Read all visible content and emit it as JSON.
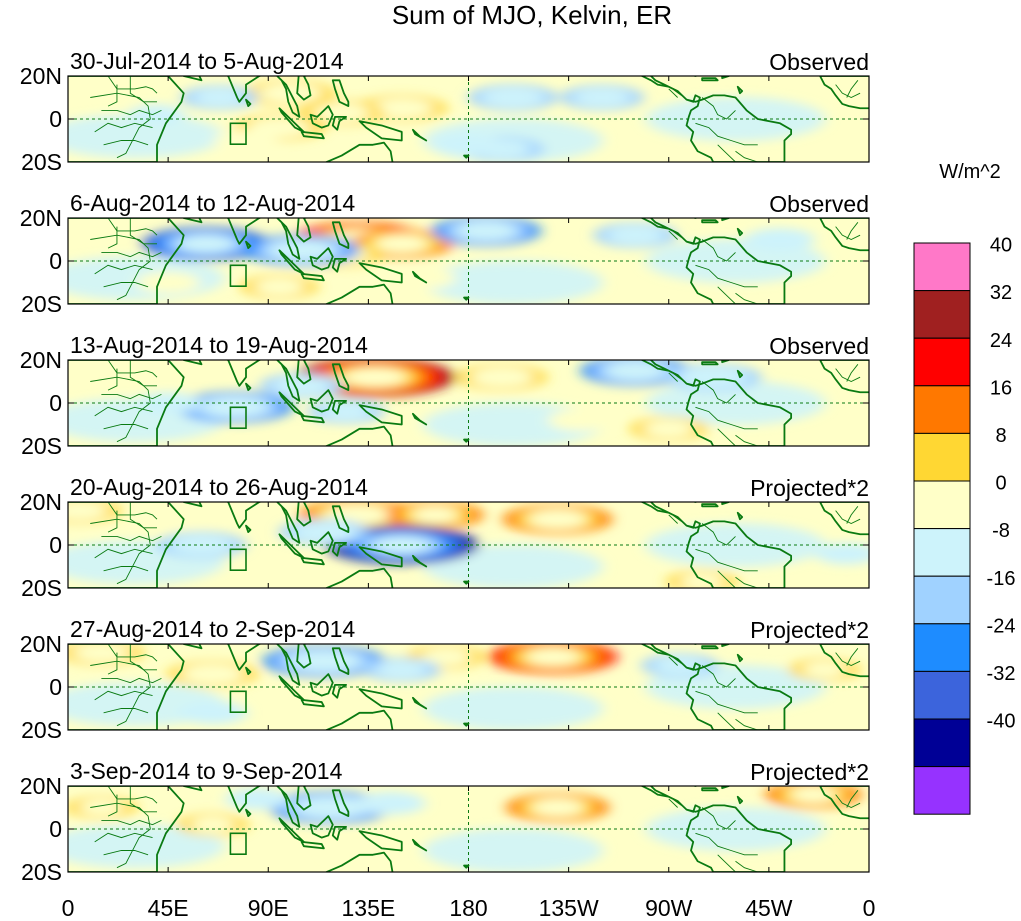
{
  "chart_data": {
    "type": "heatmap",
    "title": "Sum of MJO, Kelvin, ER",
    "units": "W/m^2",
    "x_tick_labels": [
      "0",
      "45E",
      "90E",
      "135E",
      "180",
      "135W",
      "90W",
      "45W",
      "0"
    ],
    "y_tick_labels": [
      "20N",
      "0",
      "20S"
    ],
    "xlim_deg_east": [
      0,
      360
    ],
    "ylim_deg": [
      -20,
      20
    ],
    "colorbar": {
      "levels": [
        40,
        32,
        24,
        16,
        8,
        0,
        -8,
        -16,
        -24,
        -32,
        -40
      ],
      "colors": [
        "#ff78c8",
        "#a02020",
        "#ff0000",
        "#ff7800",
        "#ffd733",
        "#ffffc8",
        "#cdf3fb",
        "#a0d2ff",
        "#1e8cff",
        "#3c64dc",
        "#000096",
        "#9632ff"
      ]
    },
    "panels": [
      {
        "label": "30-Jul-2014 to 5-Aug-2014",
        "status": "Observed",
        "anomalies": [
          {
            "lon": 100,
            "lat": 12,
            "value": 14
          },
          {
            "lon": 150,
            "lat": 5,
            "value": 14
          },
          {
            "lon": 123,
            "lat": 3,
            "value": 12
          },
          {
            "lon": 95,
            "lat": -4,
            "value": 14
          },
          {
            "lon": 80,
            "lat": -10,
            "value": 6
          },
          {
            "lon": 68,
            "lat": 10,
            "value": -10
          },
          {
            "lon": 200,
            "lat": 10,
            "value": -14
          },
          {
            "lon": 240,
            "lat": 10,
            "value": -12
          },
          {
            "lon": 195,
            "lat": -14,
            "value": -12
          },
          {
            "lon": 180,
            "lat": -12,
            "value": -8
          },
          {
            "lon": 40,
            "lat": 2,
            "value": -4
          }
        ]
      },
      {
        "label": "6-Aug-2014 to 12-Aug-2014",
        "status": "Observed",
        "anomalies": [
          {
            "lon": 131,
            "lat": 10,
            "value": 28
          },
          {
            "lon": 150,
            "lat": 8,
            "value": 18
          },
          {
            "lon": 122,
            "lat": 3,
            "value": 12
          },
          {
            "lon": 95,
            "lat": -12,
            "value": 10
          },
          {
            "lon": 45,
            "lat": -10,
            "value": 6
          },
          {
            "lon": 160,
            "lat": -8,
            "value": 6
          },
          {
            "lon": 62,
            "lat": 8,
            "value": -26
          },
          {
            "lon": 105,
            "lat": 5,
            "value": -22
          },
          {
            "lon": 188,
            "lat": 14,
            "value": -20
          },
          {
            "lon": 255,
            "lat": 12,
            "value": -12
          },
          {
            "lon": 320,
            "lat": 10,
            "value": -8
          }
        ]
      },
      {
        "label": "13-Aug-2014 to 19-Aug-2014",
        "status": "Observed",
        "anomalies": [
          {
            "lon": 138,
            "lat": 12,
            "value": 36
          },
          {
            "lon": 195,
            "lat": 12,
            "value": 14
          },
          {
            "lon": 270,
            "lat": -12,
            "value": 10
          },
          {
            "lon": 230,
            "lat": -8,
            "value": 6
          },
          {
            "lon": 75,
            "lat": -2,
            "value": -22
          },
          {
            "lon": 105,
            "lat": 8,
            "value": -12
          },
          {
            "lon": 125,
            "lat": -4,
            "value": -10
          },
          {
            "lon": 255,
            "lat": 15,
            "value": -20
          },
          {
            "lon": 290,
            "lat": 12,
            "value": -16
          },
          {
            "lon": 45,
            "lat": 0,
            "value": -6
          }
        ]
      },
      {
        "label": "20-Aug-2014 to 26-Aug-2014",
        "status": "Projected*2",
        "anomalies": [
          {
            "lon": 130,
            "lat": 14,
            "value": 22
          },
          {
            "lon": 165,
            "lat": 14,
            "value": 16
          },
          {
            "lon": 220,
            "lat": 12,
            "value": 20
          },
          {
            "lon": 5,
            "lat": 16,
            "value": 12
          },
          {
            "lon": 55,
            "lat": 14,
            "value": 6
          },
          {
            "lon": 285,
            "lat": -17,
            "value": 8
          },
          {
            "lon": 150,
            "lat": 0,
            "value": -34
          },
          {
            "lon": 115,
            "lat": 6,
            "value": -14
          },
          {
            "lon": 60,
            "lat": 0,
            "value": -14
          },
          {
            "lon": 350,
            "lat": -4,
            "value": -6
          }
        ]
      },
      {
        "label": "27-Aug-2014 to 2-Sep-2014",
        "status": "Projected*2",
        "anomalies": [
          {
            "lon": 65,
            "lat": 6,
            "value": 14
          },
          {
            "lon": 15,
            "lat": 16,
            "value": 12
          },
          {
            "lon": 218,
            "lat": 14,
            "value": 26
          },
          {
            "lon": 170,
            "lat": 14,
            "value": 10
          },
          {
            "lon": 340,
            "lat": 8,
            "value": 8
          },
          {
            "lon": 115,
            "lat": 12,
            "value": -24
          },
          {
            "lon": 150,
            "lat": 8,
            "value": -10
          },
          {
            "lon": 65,
            "lat": -12,
            "value": -8
          },
          {
            "lon": 275,
            "lat": 10,
            "value": -10
          }
        ]
      },
      {
        "label": "3-Sep-2014 to 9-Sep-2014",
        "status": "Projected*2",
        "anomalies": [
          {
            "lon": 220,
            "lat": 10,
            "value": 18
          },
          {
            "lon": 335,
            "lat": 16,
            "value": 16
          },
          {
            "lon": 65,
            "lat": 2,
            "value": 8
          },
          {
            "lon": 15,
            "lat": 10,
            "value": 8
          },
          {
            "lon": 130,
            "lat": -10,
            "value": 6
          },
          {
            "lon": 118,
            "lat": 10,
            "value": -24
          },
          {
            "lon": 145,
            "lat": 12,
            "value": -8
          },
          {
            "lon": 85,
            "lat": 14,
            "value": -6
          }
        ]
      }
    ]
  }
}
